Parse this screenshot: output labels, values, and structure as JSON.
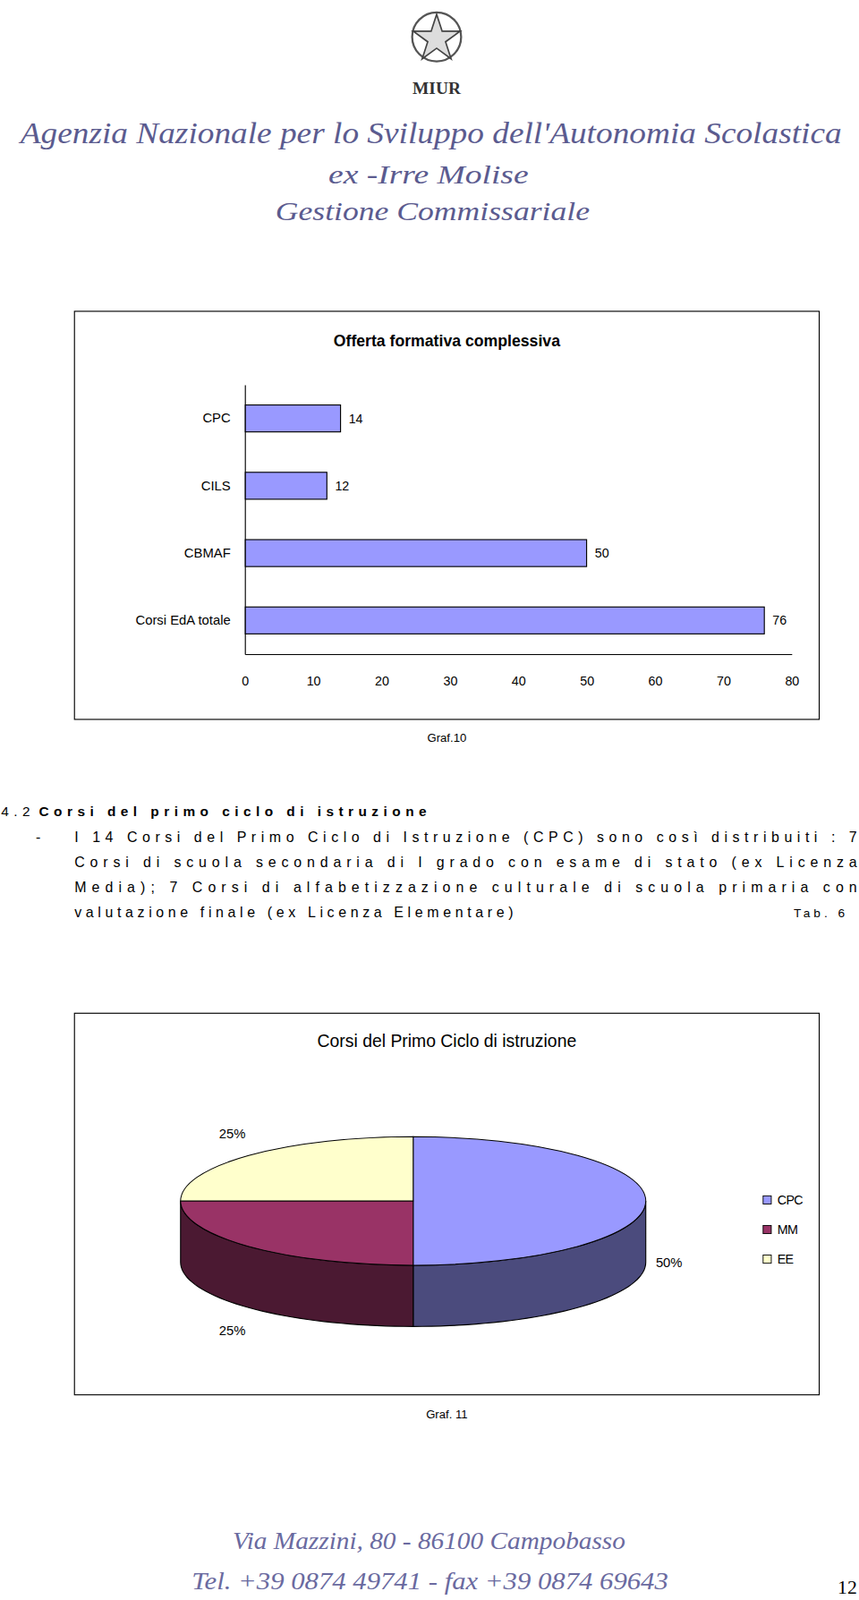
{
  "header": {
    "emblem_text": "MIUR",
    "lines": [
      "Agenzia Nazionale per lo Sviluppo dell'Autonomia Scolastica",
      "ex -Irre Molise",
      "Gestione Commissariale"
    ]
  },
  "chart_data": [
    {
      "type": "bar",
      "title": "Offerta formativa complessiva",
      "orientation": "horizontal",
      "categories": [
        "CPC",
        "CILS",
        "CBMAF",
        "Corsi EdA totale"
      ],
      "values": [
        14,
        12,
        50,
        76
      ],
      "color": "#9999ff",
      "xlim": [
        0,
        80
      ],
      "xticks": [
        0,
        10,
        20,
        30,
        40,
        50,
        60,
        70,
        80
      ],
      "data_labels": true
    },
    {
      "type": "pie",
      "title": "Corsi del Primo Ciclo di istruzione",
      "categories": [
        "CPC",
        "MM",
        "EE"
      ],
      "values": [
        50,
        25,
        25
      ],
      "value_labels": [
        "50%",
        "25%",
        "25%"
      ],
      "colors": [
        "#9999ff",
        "#993366",
        "#ffffcc"
      ],
      "data_labels": true,
      "legend": "right"
    }
  ],
  "captions": [
    "Graf.10",
    "Graf. 11"
  ],
  "section": {
    "number": "4.2",
    "title": "Corsi del primo ciclo di istruzione",
    "bullet": "-",
    "lines": [
      "I 14 Corsi del Primo Ciclo di Istruzione (CPC) sono così distribuiti : 7",
      "Corsi di scuola secondaria di I grado con esame di stato (ex Licenza",
      "Media); 7  Corsi di alfabetizzazione culturale di scuola primaria con",
      "valutazione finale (ex Licenza Elementare)"
    ],
    "table_ref": "Tab. 6"
  },
  "footer": {
    "address": "Via Mazzini, 80 - 86100 Campobasso",
    "phone": "Tel. +39 0874 49741 - fax +39 0874 69643",
    "page_number": 12
  }
}
